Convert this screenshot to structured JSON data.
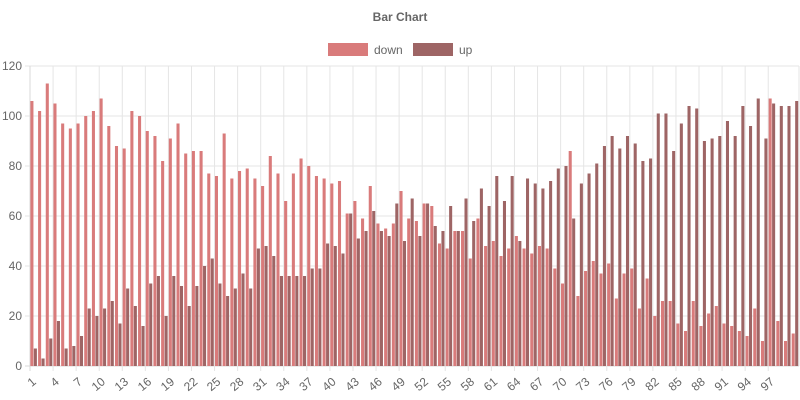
{
  "chart_data": {
    "type": "bar",
    "title": "Bar Chart",
    "xlabel": "",
    "ylabel": "",
    "ylim": [
      0,
      120
    ],
    "yticks": [
      0,
      20,
      40,
      60,
      80,
      100,
      120
    ],
    "grid": true,
    "legend_position": "top",
    "categories": [
      1,
      2,
      3,
      4,
      5,
      6,
      7,
      8,
      9,
      10,
      11,
      12,
      13,
      14,
      15,
      16,
      17,
      18,
      19,
      20,
      21,
      22,
      23,
      24,
      25,
      26,
      27,
      28,
      29,
      30,
      31,
      32,
      33,
      34,
      35,
      36,
      37,
      38,
      39,
      40,
      41,
      42,
      43,
      44,
      45,
      46,
      47,
      48,
      49,
      50,
      51,
      52,
      53,
      54,
      55,
      56,
      57,
      58,
      59,
      60,
      61,
      62,
      63,
      64,
      65,
      66,
      67,
      68,
      69,
      70,
      71,
      72,
      73,
      74,
      75,
      76,
      77,
      78,
      79,
      80,
      81,
      82,
      83,
      84,
      85,
      86,
      87,
      88,
      89,
      90,
      91,
      92,
      93,
      94,
      95,
      96,
      97,
      98,
      99,
      100
    ],
    "x_tick_labels": [
      "1",
      "4",
      "7",
      "10",
      "13",
      "16",
      "19",
      "22",
      "25",
      "28",
      "31",
      "34",
      "37",
      "40",
      "43",
      "46",
      "49",
      "52",
      "55",
      "58",
      "61",
      "64",
      "67",
      "70",
      "73",
      "76",
      "79",
      "82",
      "85",
      "88",
      "91",
      "94",
      "97"
    ],
    "series": [
      {
        "name": "down",
        "color": "#d97b7b",
        "values": [
          106,
          102,
          113,
          105,
          97,
          95,
          97,
          100,
          102,
          107,
          96,
          88,
          87,
          102,
          100,
          94,
          92,
          82,
          91,
          97,
          85,
          86,
          86,
          77,
          76,
          93,
          75,
          78,
          79,
          75,
          72,
          84,
          77,
          66,
          77,
          83,
          80,
          76,
          75,
          73,
          74,
          61,
          66,
          59,
          72,
          57,
          55,
          57,
          70,
          59,
          58,
          65,
          64,
          49,
          47,
          54,
          54,
          43,
          59,
          48,
          50,
          44,
          47,
          52,
          47,
          45,
          48,
          47,
          39,
          33,
          86,
          28,
          38,
          42,
          37,
          41,
          27,
          37,
          39,
          23,
          35,
          20,
          26,
          26,
          17,
          14,
          26,
          16,
          21,
          24,
          17,
          16,
          14,
          12,
          23,
          10,
          107,
          18,
          10,
          13
        ]
      },
      {
        "name": "up",
        "color": "#9e6565",
        "values": [
          7,
          3,
          11,
          18,
          7,
          8,
          12,
          23,
          20,
          23,
          26,
          17,
          31,
          24,
          16,
          33,
          36,
          20,
          36,
          32,
          24,
          32,
          40,
          43,
          33,
          28,
          31,
          37,
          31,
          47,
          48,
          44,
          36,
          36,
          36,
          36,
          39,
          39,
          49,
          48,
          45,
          61,
          51,
          54,
          62,
          54,
          52,
          65,
          50,
          67,
          52,
          65,
          56,
          54,
          64,
          54,
          67,
          58,
          71,
          64,
          76,
          66,
          76,
          50,
          75,
          73,
          71,
          74,
          79,
          80,
          59,
          73,
          77,
          81,
          88,
          92,
          87,
          92,
          89,
          82,
          83,
          101,
          101,
          86,
          97,
          104,
          103,
          90,
          91,
          92,
          98,
          92,
          104,
          96,
          107,
          91,
          105,
          104,
          104,
          106
        ]
      }
    ]
  }
}
